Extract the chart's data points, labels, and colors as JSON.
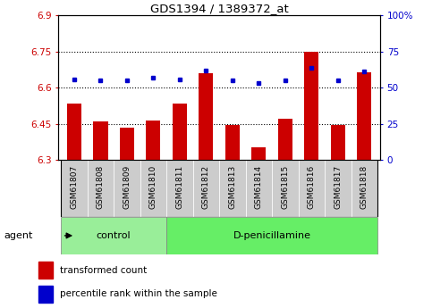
{
  "title": "GDS1394 / 1389372_at",
  "samples": [
    "GSM61807",
    "GSM61808",
    "GSM61809",
    "GSM61810",
    "GSM61811",
    "GSM61812",
    "GSM61813",
    "GSM61814",
    "GSM61815",
    "GSM61816",
    "GSM61817",
    "GSM61818"
  ],
  "red_values": [
    6.535,
    6.46,
    6.435,
    6.465,
    6.535,
    6.66,
    6.445,
    6.355,
    6.47,
    6.748,
    6.445,
    6.665
  ],
  "blue_values": [
    56,
    55,
    55,
    57,
    56,
    62,
    55,
    53,
    55,
    64,
    55,
    61
  ],
  "ylim_left": [
    6.3,
    6.9
  ],
  "ylim_right": [
    0,
    100
  ],
  "yticks_left": [
    6.3,
    6.45,
    6.6,
    6.75,
    6.9
  ],
  "yticks_right": [
    0,
    25,
    50,
    75,
    100
  ],
  "ytick_labels_left": [
    "6.3",
    "6.45",
    "6.6",
    "6.75",
    "6.9"
  ],
  "ytick_labels_right": [
    "0",
    "25",
    "50",
    "75",
    "100%"
  ],
  "hlines": [
    6.45,
    6.6,
    6.75
  ],
  "bar_color": "#cc0000",
  "dot_color": "#0000cc",
  "bar_bottom": 6.3,
  "control_samples": 4,
  "control_label": "control",
  "treatment_label": "D-penicillamine",
  "agent_label": "agent",
  "legend_red": "transformed count",
  "legend_blue": "percentile rank within the sample",
  "sample_box_color": "#cccccc",
  "control_color": "#99ee99",
  "treatment_color": "#66ee66",
  "xlabel_color": "#cc0000",
  "right_axis_color": "#0000cc",
  "bg_color": "#ffffff"
}
